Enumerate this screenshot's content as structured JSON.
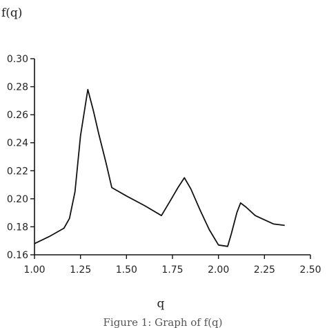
{
  "chart_data": {
    "type": "line",
    "title": "",
    "ylabel": "f(q)",
    "xlabel": "q",
    "caption": "Figure 1: Graph of f(q)",
    "xlim": [
      1.0,
      2.5
    ],
    "ylim": [
      0.16,
      0.3
    ],
    "x_ticks": [
      1.0,
      1.25,
      1.5,
      1.75,
      2.0,
      2.25,
      2.5
    ],
    "x_tick_labels": [
      "1.00",
      "1.25",
      "1.50",
      "1.75",
      "2.00",
      "2.25",
      "2.50"
    ],
    "y_ticks": [
      0.16,
      0.18,
      0.2,
      0.22,
      0.24,
      0.26,
      0.28,
      0.3
    ],
    "y_tick_labels": [
      "0.16",
      "0.18",
      "0.20",
      "0.22",
      "0.24",
      "0.26",
      "0.28",
      "0.30"
    ],
    "grid": false,
    "series": [
      {
        "x": [
          1.0,
          1.08,
          1.16,
          1.19,
          1.22,
          1.25,
          1.29,
          1.32,
          1.35,
          1.39,
          1.42,
          1.5,
          1.6,
          1.69,
          1.74,
          1.78,
          1.815,
          1.85,
          1.9,
          1.95,
          2.0,
          2.05,
          2.07,
          2.1,
          2.12,
          2.15,
          2.2,
          2.25,
          2.3,
          2.36
        ],
        "y": [
          0.168,
          0.173,
          0.179,
          0.186,
          0.205,
          0.245,
          0.278,
          0.263,
          0.246,
          0.225,
          0.208,
          0.202,
          0.195,
          0.188,
          0.199,
          0.208,
          0.215,
          0.207,
          0.192,
          0.178,
          0.167,
          0.166,
          0.175,
          0.19,
          0.197,
          0.194,
          0.188,
          0.185,
          0.182,
          0.181
        ]
      }
    ]
  }
}
